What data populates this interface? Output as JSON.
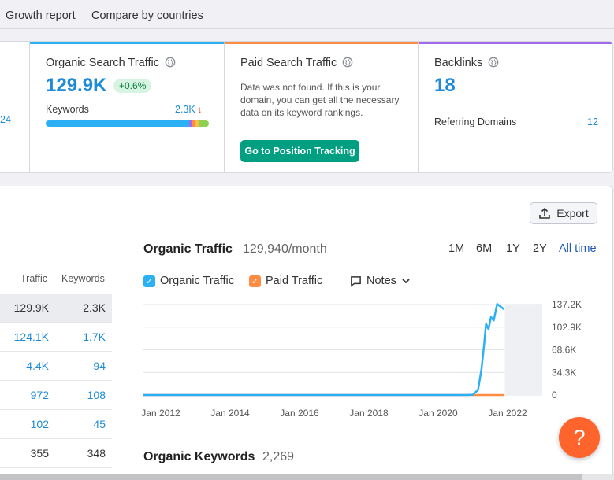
{
  "nav": {
    "tabs": [
      "Growth report",
      "Compare by countries"
    ]
  },
  "cards": {
    "stub_value": "24",
    "organic": {
      "title": "Organic Search Traffic",
      "value": "129.9K",
      "change": "+0.6%",
      "keywords_label": "Keywords",
      "keywords_value": "2.3K",
      "keywords_trend": "↓",
      "bar_segments": [
        {
          "color": "#2bb0f5",
          "share": 0.88
        },
        {
          "color": "#9d6bf0",
          "share": 0.02
        },
        {
          "color": "#ff8c42",
          "share": 0.02
        },
        {
          "color": "#f5c04a",
          "share": 0.02
        },
        {
          "color": "#8fd14f",
          "share": 0.06
        }
      ]
    },
    "paid": {
      "title": "Paid Search Traffic",
      "message": "Data was not found. If this is your domain, you can get all the necessary data on its keyword rankings.",
      "button": "Go to Position Tracking"
    },
    "backlinks": {
      "title": "Backlinks",
      "value": "18",
      "ref_label": "Referring Domains",
      "ref_value": "12"
    }
  },
  "export": {
    "label": "Export"
  },
  "table": {
    "headers": [
      "Traffic",
      "Keywords"
    ],
    "rows": [
      {
        "traffic": "129.9K",
        "keywords": "2.3K",
        "style": "plain",
        "selected": true
      },
      {
        "traffic": "124.1K",
        "keywords": "1.7K",
        "style": "link",
        "selected": false
      },
      {
        "traffic": "4.4K",
        "keywords": "94",
        "style": "link",
        "selected": false
      },
      {
        "traffic": "972",
        "keywords": "108",
        "style": "link",
        "selected": false
      },
      {
        "traffic": "102",
        "keywords": "45",
        "style": "link",
        "selected": false
      },
      {
        "traffic": "355",
        "keywords": "348",
        "style": "plain",
        "selected": false
      }
    ]
  },
  "chart": {
    "title": "Organic Traffic",
    "subtitle": "129,940/month",
    "ranges": [
      "1M",
      "6M",
      "1Y",
      "2Y",
      "All time"
    ],
    "active_range": "All time",
    "legend": [
      {
        "label": "Organic Traffic",
        "color": "#2bb0f5",
        "checked": true
      },
      {
        "label": "Paid Traffic",
        "color": "#ff8c42",
        "checked": true
      }
    ],
    "notes_label": "Notes"
  },
  "chart_data": {
    "type": "line",
    "x_tick_labels": [
      "Jan 2012",
      "Jan 2014",
      "Jan 2016",
      "Jan 2018",
      "Jan 2020",
      "Jan 2022"
    ],
    "y_tick_labels": [
      "137.2K",
      "102.9K",
      "68.6K",
      "34.3K",
      "0"
    ],
    "ylim": [
      0,
      137200
    ],
    "xlim": [
      2011.5,
      2023.0
    ],
    "series": [
      {
        "name": "Organic Traffic",
        "color": "#2bb0f5",
        "points": [
          [
            2011.5,
            0
          ],
          [
            2020.8,
            0
          ],
          [
            2021.0,
            500
          ],
          [
            2021.15,
            8000
          ],
          [
            2021.25,
            40000
          ],
          [
            2021.32,
            75000
          ],
          [
            2021.38,
            108000
          ],
          [
            2021.45,
            100000
          ],
          [
            2021.52,
            118000
          ],
          [
            2021.6,
            113000
          ],
          [
            2021.7,
            138000
          ],
          [
            2021.8,
            134000
          ],
          [
            2021.9,
            129940
          ]
        ]
      },
      {
        "name": "Paid Traffic",
        "color": "#ff8c42",
        "points": [
          [
            2011.5,
            0
          ],
          [
            2021.9,
            0
          ]
        ]
      }
    ],
    "grid": true
  },
  "keywords_section": {
    "title": "Organic Keywords",
    "count": "2,269"
  },
  "help": {
    "label": "?"
  }
}
